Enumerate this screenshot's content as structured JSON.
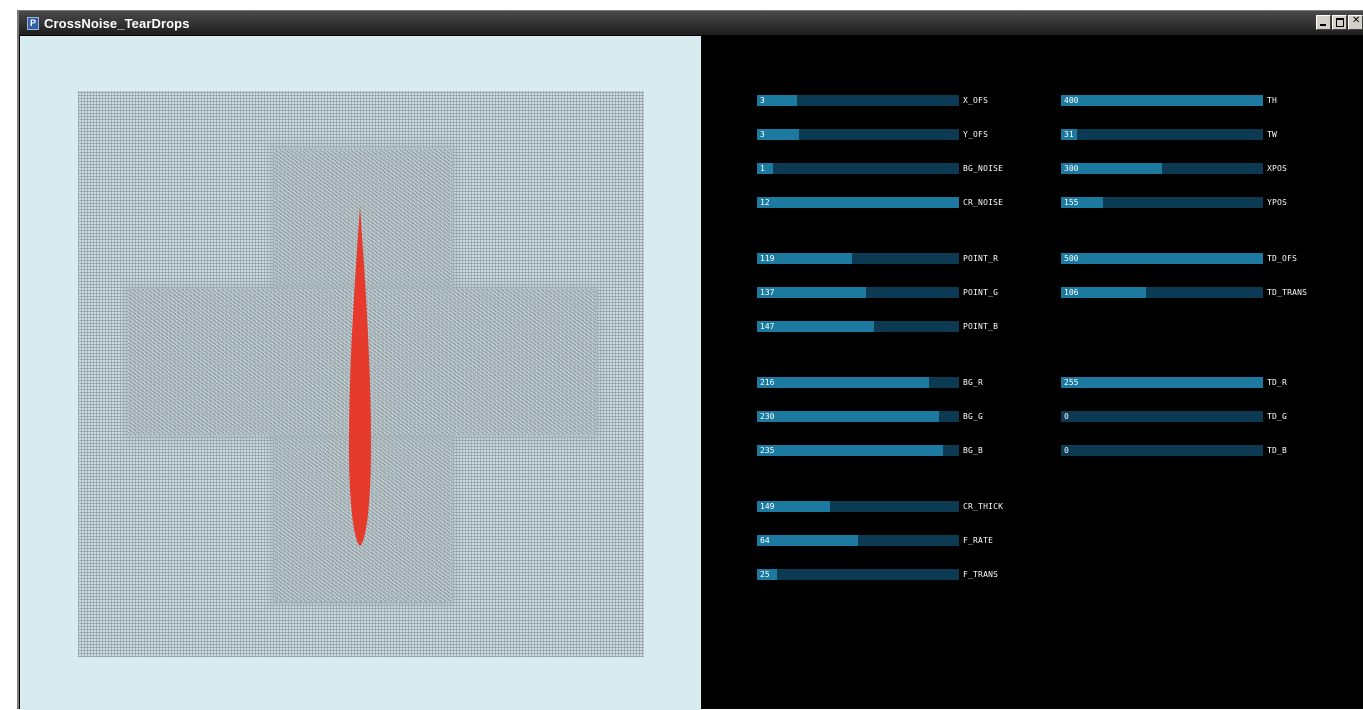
{
  "window": {
    "title": "CrossNoise_TearDrops",
    "icon": "processing-app-icon",
    "icon_glyph": "P"
  },
  "canvas": {
    "background_color": "#d8ecf0",
    "teardrop_color": "#e63a2c"
  },
  "sliders": [
    {
      "key": "x_ofs",
      "value": "3",
      "label": "X_OFS",
      "fraction": 0.2
    },
    {
      "key": "y_ofs",
      "value": "3",
      "label": "Y_OFS",
      "fraction": 0.21
    },
    {
      "key": "bg_noise",
      "value": "1",
      "label": "BG_NOISE",
      "fraction": 0.08
    },
    {
      "key": "cr_noise",
      "value": "12",
      "label": "CR_NOISE",
      "fraction": 1.0
    },
    {
      "key": "point_r",
      "value": "119",
      "label": "POINT_R",
      "fraction": 0.47
    },
    {
      "key": "point_g",
      "value": "137",
      "label": "POINT_G",
      "fraction": 0.54
    },
    {
      "key": "point_b",
      "value": "147",
      "label": "POINT_B",
      "fraction": 0.58
    },
    {
      "key": "bg_r",
      "value": "216",
      "label": "BG_R",
      "fraction": 0.85
    },
    {
      "key": "bg_g",
      "value": "230",
      "label": "BG_G",
      "fraction": 0.9
    },
    {
      "key": "bg_b",
      "value": "235",
      "label": "BG_B",
      "fraction": 0.92
    },
    {
      "key": "cr_thick",
      "value": "149",
      "label": "CR_THICK",
      "fraction": 0.36
    },
    {
      "key": "f_rate",
      "value": "64",
      "label": "F_RATE",
      "fraction": 0.5
    },
    {
      "key": "f_trans",
      "value": "25",
      "label": "F_TRANS",
      "fraction": 0.1
    },
    {
      "key": "th",
      "value": "400",
      "label": "TH",
      "fraction": 1.0
    },
    {
      "key": "tw",
      "value": "31",
      "label": "TW",
      "fraction": 0.08
    },
    {
      "key": "xpos",
      "value": "300",
      "label": "XPOS",
      "fraction": 0.5
    },
    {
      "key": "ypos",
      "value": "155",
      "label": "YPOS",
      "fraction": 0.21
    },
    {
      "key": "td_ofs",
      "value": "500",
      "label": "TD_OFS",
      "fraction": 1.0
    },
    {
      "key": "td_trans",
      "value": "106",
      "label": "TD_TRANS",
      "fraction": 0.42
    },
    {
      "key": "td_r",
      "value": "255",
      "label": "TD_R",
      "fraction": 1.0
    },
    {
      "key": "td_g",
      "value": "0",
      "label": "TD_G",
      "fraction": 0.0
    },
    {
      "key": "td_b",
      "value": "0",
      "label": "TD_B",
      "fraction": 0.0
    }
  ]
}
